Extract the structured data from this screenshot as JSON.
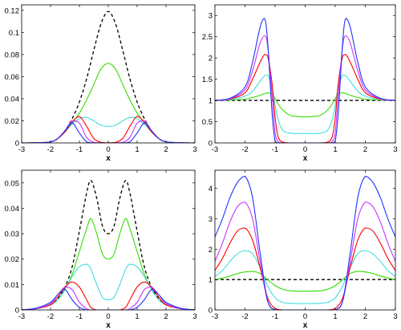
{
  "chart_data": [
    {
      "type": "line",
      "title": "",
      "xlabel": "x",
      "ylabel": "",
      "xlim": [
        -3,
        3
      ],
      "ylim": [
        0,
        0.125
      ],
      "xticks": [
        "-3",
        "-2",
        "-1",
        "0",
        "1",
        "2",
        "3"
      ],
      "yticks": [
        "0",
        "0.02",
        "0.04",
        "0.06",
        "0.08",
        "0.1",
        "0.12"
      ],
      "x": [
        -3,
        -2.5,
        -2,
        -1.75,
        -1.5,
        -1.25,
        -1,
        -0.75,
        -0.5,
        -0.25,
        0,
        0.25,
        0.5,
        0.75,
        1,
        1.25,
        1.5,
        1.75,
        2,
        2.5,
        3
      ],
      "series": [
        {
          "color": "#000000",
          "dashed": true,
          "values": [
            0,
            0.0001,
            0.001,
            0.004,
            0.011,
            0.022,
            0.037,
            0.058,
            0.084,
            0.108,
            0.119,
            0.108,
            0.084,
            0.058,
            0.037,
            0.022,
            0.011,
            0.004,
            0.001,
            0.0001,
            0
          ]
        },
        {
          "color": "#33dd00",
          "values": [
            0,
            0.0001,
            0.001,
            0.004,
            0.01,
            0.018,
            0.027,
            0.039,
            0.053,
            0.067,
            0.072,
            0.067,
            0.053,
            0.039,
            0.027,
            0.018,
            0.01,
            0.004,
            0.001,
            0.0001,
            0
          ]
        },
        {
          "color": "#44dddd",
          "values": [
            0,
            0.0001,
            0.001,
            0.004,
            0.01,
            0.017,
            0.022,
            0.023,
            0.02,
            0.016,
            0.015,
            0.016,
            0.02,
            0.023,
            0.022,
            0.017,
            0.01,
            0.004,
            0.001,
            0.0001,
            0
          ]
        },
        {
          "color": "#ff0000",
          "values": [
            0,
            0.0001,
            0.001,
            0.004,
            0.01,
            0.019,
            0.024,
            0.015,
            0.004,
            0.0005,
            0.0001,
            0.0005,
            0.004,
            0.015,
            0.024,
            0.019,
            0.01,
            0.004,
            0.001,
            0.0001,
            0
          ]
        },
        {
          "color": "#cc33ff",
          "values": [
            0,
            0.0001,
            0.001,
            0.004,
            0.011,
            0.02,
            0.018,
            0.005,
            0.0005,
            0,
            0,
            0,
            0.0005,
            0.005,
            0.018,
            0.02,
            0.011,
            0.004,
            0.001,
            0.0001,
            0
          ]
        },
        {
          "color": "#2233ff",
          "values": [
            0,
            0.0001,
            0.001,
            0.004,
            0.011,
            0.018,
            0.009,
            0.001,
            0,
            0,
            0,
            0,
            0,
            0.001,
            0.009,
            0.018,
            0.011,
            0.004,
            0.001,
            0.0001,
            0
          ]
        }
      ]
    },
    {
      "type": "line",
      "title": "",
      "xlabel": "x",
      "ylabel": "",
      "xlim": [
        -3,
        3
      ],
      "ylim": [
        0,
        3.25
      ],
      "xticks": [
        "-3",
        "-2",
        "-1",
        "0",
        "1",
        "2",
        "3"
      ],
      "yticks": [
        "0",
        "0.5",
        "1",
        "1.5",
        "2",
        "2.5",
        "3"
      ],
      "x": [
        -3,
        -2.5,
        -2,
        -1.75,
        -1.5,
        -1.35,
        -1.25,
        -1.1,
        -1,
        -0.9,
        -0.75,
        -0.5,
        -0.25,
        0,
        0.25,
        0.5,
        0.75,
        0.9,
        1,
        1.1,
        1.25,
        1.35,
        1.5,
        1.75,
        2,
        2.5,
        3
      ],
      "series": [
        {
          "color": "#000000",
          "dashed": true,
          "values": [
            1,
            1,
            1,
            1,
            1,
            1,
            1,
            1,
            1,
            1,
            1,
            1,
            1,
            1,
            1,
            1,
            1,
            1,
            1,
            1,
            1,
            1,
            1,
            1,
            1,
            1,
            1
          ]
        },
        {
          "color": "#33dd00",
          "values": [
            1,
            1.01,
            1.03,
            1.07,
            1.12,
            1.16,
            1.18,
            1.15,
            1.05,
            0.92,
            0.78,
            0.65,
            0.62,
            0.61,
            0.62,
            0.65,
            0.78,
            0.92,
            1.05,
            1.15,
            1.18,
            1.16,
            1.12,
            1.07,
            1.03,
            1.01,
            1
          ]
        },
        {
          "color": "#44dddd",
          "values": [
            1,
            1.02,
            1.1,
            1.22,
            1.45,
            1.58,
            1.6,
            1.3,
            0.9,
            0.55,
            0.3,
            0.23,
            0.22,
            0.22,
            0.22,
            0.23,
            0.3,
            0.55,
            0.9,
            1.3,
            1.6,
            1.58,
            1.45,
            1.22,
            1.1,
            1.02,
            1
          ]
        },
        {
          "color": "#ff0000",
          "values": [
            1,
            1.03,
            1.18,
            1.5,
            1.9,
            2.08,
            2.05,
            1.4,
            0.6,
            0.15,
            0.02,
            0,
            0,
            0,
            0,
            0,
            0.02,
            0.15,
            0.6,
            1.4,
            2.05,
            2.08,
            1.9,
            1.5,
            1.18,
            1.03,
            1
          ]
        },
        {
          "color": "#cc33ff",
          "values": [
            1,
            1.04,
            1.25,
            1.7,
            2.35,
            2.52,
            2.3,
            1.1,
            0.25,
            0.03,
            0,
            0,
            0,
            0,
            0,
            0,
            0,
            0.03,
            0.25,
            1.1,
            2.3,
            2.52,
            2.35,
            1.7,
            1.25,
            1.04,
            1
          ]
        },
        {
          "color": "#2233ff",
          "values": [
            1,
            1.05,
            1.32,
            1.9,
            2.72,
            2.93,
            2.4,
            0.7,
            0.05,
            0,
            0,
            0,
            0,
            0,
            0,
            0,
            0,
            0,
            0.05,
            0.7,
            2.4,
            2.93,
            2.72,
            1.9,
            1.32,
            1.05,
            1
          ]
        }
      ]
    },
    {
      "type": "line",
      "title": "",
      "xlabel": "x",
      "ylabel": "",
      "xlim": [
        -3,
        3
      ],
      "ylim": [
        0,
        0.055
      ],
      "xticks": [
        "-3",
        "-2",
        "-1",
        "0",
        "1",
        "2",
        "3"
      ],
      "yticks": [
        "0",
        "0.01",
        "0.02",
        "0.03",
        "0.04",
        "0.05"
      ],
      "x": [
        -3,
        -2.5,
        -2,
        -1.75,
        -1.5,
        -1.25,
        -1,
        -0.75,
        -0.6,
        -0.4,
        -0.2,
        0,
        0.2,
        0.4,
        0.6,
        0.75,
        1,
        1.25,
        1.5,
        1.75,
        2,
        2.5,
        3
      ],
      "series": [
        {
          "color": "#000000",
          "dashed": true,
          "values": [
            0,
            0.0005,
            0.002,
            0.0045,
            0.009,
            0.017,
            0.031,
            0.046,
            0.051,
            0.044,
            0.033,
            0.03,
            0.033,
            0.044,
            0.051,
            0.046,
            0.031,
            0.017,
            0.009,
            0.0045,
            0.002,
            0.0005,
            0
          ]
        },
        {
          "color": "#33dd00",
          "values": [
            0,
            0.0005,
            0.002,
            0.004,
            0.008,
            0.014,
            0.023,
            0.032,
            0.036,
            0.03,
            0.022,
            0.02,
            0.022,
            0.03,
            0.036,
            0.032,
            0.023,
            0.014,
            0.008,
            0.004,
            0.002,
            0.0005,
            0
          ]
        },
        {
          "color": "#44dddd",
          "values": [
            0,
            0.0005,
            0.002,
            0.004,
            0.008,
            0.013,
            0.017,
            0.018,
            0.016,
            0.01,
            0.005,
            0.004,
            0.005,
            0.01,
            0.016,
            0.018,
            0.017,
            0.013,
            0.008,
            0.004,
            0.002,
            0.0005,
            0
          ]
        },
        {
          "color": "#ff0000",
          "values": [
            0,
            0.0005,
            0.002,
            0.005,
            0.009,
            0.011,
            0.009,
            0.004,
            0.001,
            0,
            0,
            0,
            0,
            0,
            0.001,
            0.004,
            0.009,
            0.011,
            0.009,
            0.005,
            0.002,
            0.0005,
            0
          ]
        },
        {
          "color": "#cc33ff",
          "values": [
            0,
            0.0005,
            0.0025,
            0.006,
            0.009,
            0.008,
            0.003,
            0.0005,
            0,
            0,
            0,
            0,
            0,
            0,
            0,
            0.0005,
            0.003,
            0.008,
            0.009,
            0.006,
            0.0025,
            0.0005,
            0
          ]
        },
        {
          "color": "#2233ff",
          "values": [
            0,
            0.0007,
            0.003,
            0.006,
            0.008,
            0.004,
            0.001,
            0,
            0,
            0,
            0,
            0,
            0,
            0,
            0,
            0,
            0.001,
            0.004,
            0.008,
            0.006,
            0.003,
            0.0007,
            0
          ]
        }
      ]
    },
    {
      "type": "line",
      "title": "",
      "xlabel": "x",
      "ylabel": "",
      "xlim": [
        -3,
        3
      ],
      "ylim": [
        0,
        4.6
      ],
      "xticks": [
        "-3",
        "-2",
        "-1",
        "0",
        "1",
        "2",
        "3"
      ],
      "yticks": [
        "0",
        "1",
        "2",
        "3",
        "4"
      ],
      "x": [
        -3,
        -2.75,
        -2.5,
        -2.25,
        -2,
        -1.75,
        -1.5,
        -1.25,
        -1,
        -0.75,
        -0.5,
        -0.25,
        0,
        0.25,
        0.5,
        0.75,
        1,
        1.25,
        1.5,
        1.75,
        2,
        2.25,
        2.5,
        2.75,
        3
      ],
      "series": [
        {
          "color": "#000000",
          "dashed": true,
          "values": [
            1,
            1,
            1,
            1,
            1,
            1,
            1,
            1,
            1,
            1,
            1,
            1,
            1,
            1,
            1,
            1,
            1,
            1,
            1,
            1,
            1,
            1,
            1,
            1,
            1
          ]
        },
        {
          "color": "#33dd00",
          "values": [
            1.0,
            1.05,
            1.12,
            1.2,
            1.25,
            1.27,
            1.2,
            1.0,
            0.8,
            0.68,
            0.63,
            0.62,
            0.62,
            0.62,
            0.63,
            0.68,
            0.8,
            1.0,
            1.2,
            1.27,
            1.25,
            1.2,
            1.12,
            1.05,
            1.0
          ]
        },
        {
          "color": "#44dddd",
          "values": [
            1.1,
            1.3,
            1.6,
            1.85,
            1.95,
            1.85,
            1.4,
            0.8,
            0.4,
            0.25,
            0.22,
            0.21,
            0.21,
            0.21,
            0.22,
            0.25,
            0.4,
            0.8,
            1.4,
            1.85,
            1.95,
            1.85,
            1.6,
            1.3,
            1.1
          ]
        },
        {
          "color": "#ff0000",
          "values": [
            1.3,
            1.7,
            2.2,
            2.6,
            2.7,
            2.3,
            1.4,
            0.4,
            0.05,
            0,
            0,
            0,
            0,
            0,
            0,
            0,
            0.05,
            0.4,
            1.4,
            2.3,
            2.7,
            2.6,
            2.2,
            1.7,
            1.3
          ]
        },
        {
          "color": "#cc33ff",
          "values": [
            1.6,
            2.2,
            2.9,
            3.4,
            3.55,
            3.0,
            1.6,
            0.3,
            0,
            0,
            0,
            0,
            0,
            0,
            0,
            0,
            0,
            0.3,
            1.6,
            3.0,
            3.55,
            3.4,
            2.9,
            2.2,
            1.6
          ]
        },
        {
          "color": "#2233ff",
          "values": [
            2.4,
            3.0,
            3.7,
            4.2,
            4.4,
            3.7,
            1.9,
            0.3,
            0,
            0,
            0,
            0,
            0,
            0,
            0,
            0,
            0,
            0.3,
            1.9,
            3.7,
            4.4,
            4.2,
            3.7,
            3.0,
            2.4
          ]
        }
      ]
    }
  ]
}
